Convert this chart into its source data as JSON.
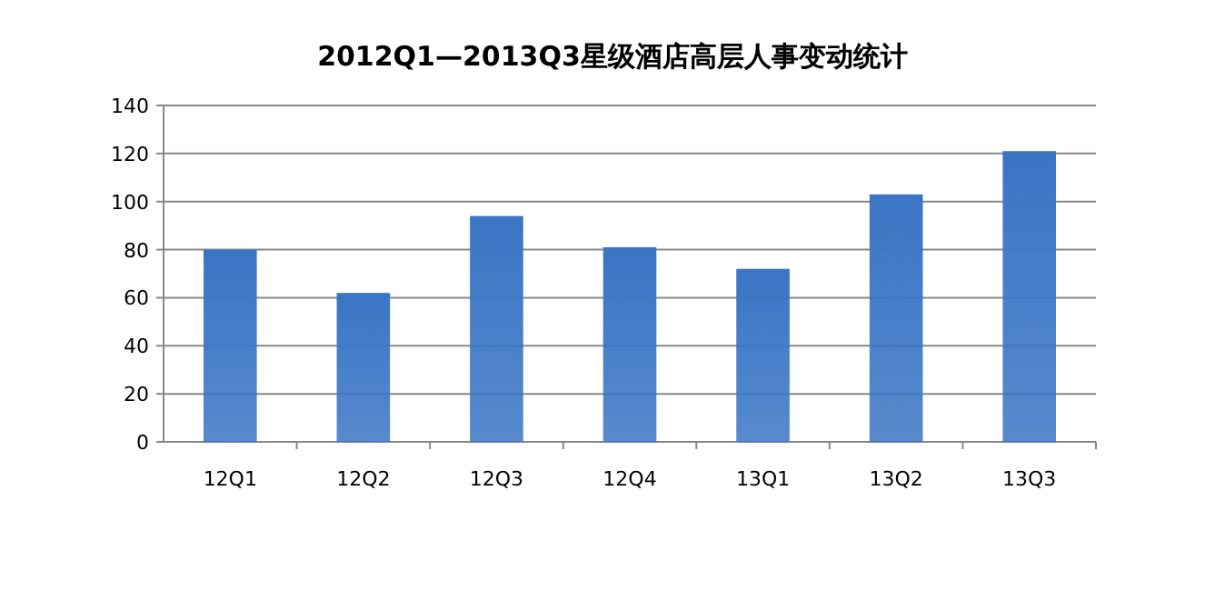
{
  "chart_data": {
    "type": "bar",
    "title": "2012Q1—2013Q3星级酒店高层人事变动统计",
    "categories": [
      "12Q1",
      "12Q2",
      "12Q3",
      "12Q4",
      "13Q1",
      "13Q2",
      "13Q3"
    ],
    "values": [
      80,
      62,
      94,
      81,
      72,
      103,
      121
    ],
    "color": "#3a75c4",
    "ylim": [
      0,
      140
    ],
    "yticks": [
      0,
      20,
      40,
      60,
      80,
      100,
      120,
      140
    ],
    "grid": "y"
  }
}
